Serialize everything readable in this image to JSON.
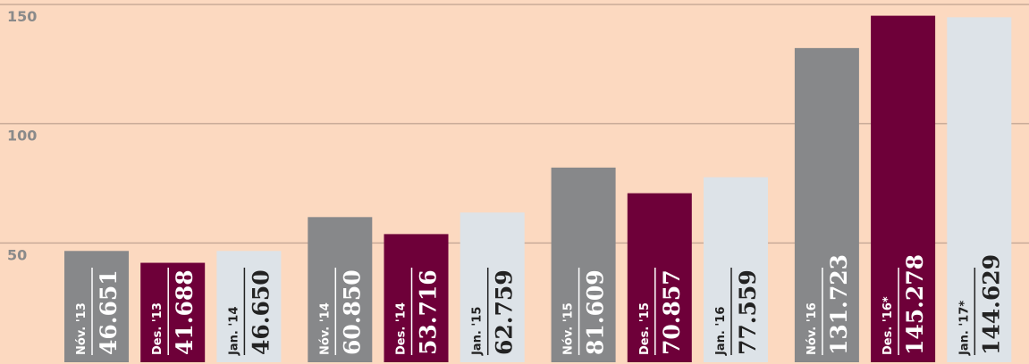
{
  "chart_data": {
    "type": "bar",
    "categories": [
      "Nóv. '13",
      "Des. '13",
      "Jan. '14",
      "Nóv. '14",
      "Des. '14",
      "Jan. '15",
      "Nóv. '15",
      "Des. '15",
      "Jan. '16",
      "Nóv. '16",
      "Des. '16*",
      "Jan. '17*"
    ],
    "values": [
      46.651,
      41.688,
      46.65,
      60.85,
      53.716,
      62.759,
      81.609,
      70.857,
      77.559,
      131.723,
      145.278,
      144.629
    ],
    "value_labels": [
      "46.651",
      "41.688",
      "46.650",
      "60.850",
      "53.716",
      "62.759",
      "81.609",
      "70.857",
      "77.559",
      "131.723",
      "145.278",
      "144.629"
    ],
    "colors": [
      "#87888a",
      "#6e0039",
      "#dde3e8"
    ],
    "ylim": [
      0,
      150
    ],
    "yticks": [
      50,
      100,
      150
    ],
    "grid": true
  }
}
